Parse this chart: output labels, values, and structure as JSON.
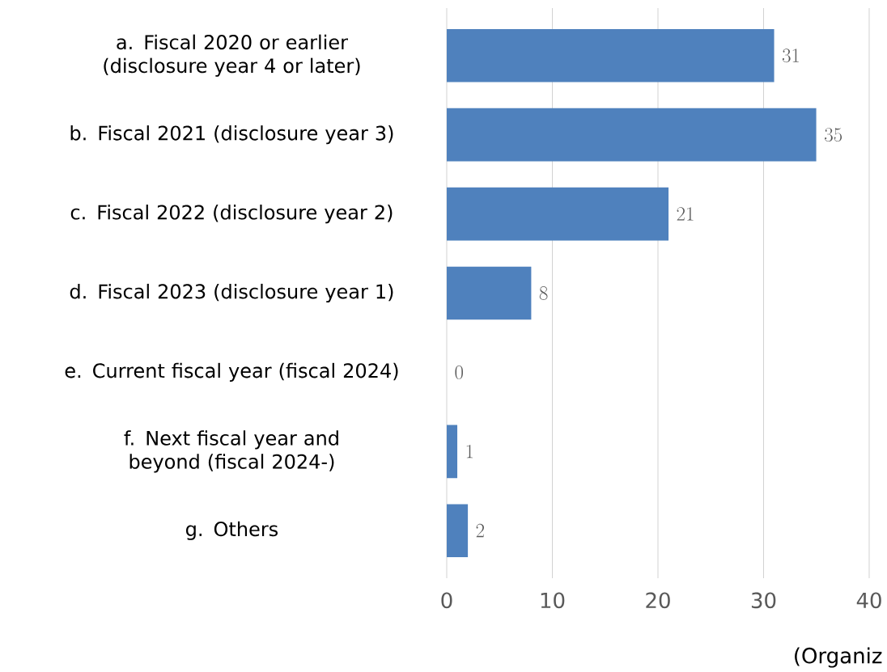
{
  "chart_data": {
    "type": "bar",
    "orientation": "horizontal",
    "categories": [
      "a.  Fiscal 2020 or earlier (disclosure year 4 or later)",
      "b.  Fiscal 2021 (disclosure year 3)",
      "c.  Fiscal 2022 (disclosure year 2)",
      "d.  Fiscal 2023 (disclosure year 1)",
      "e.  Current fiscal year (fiscal 2024)",
      "f.  Next fiscal year and beyond (fiscal 2024-)",
      "g.  Others"
    ],
    "values": [
      31,
      35,
      21,
      8,
      0,
      1,
      2
    ],
    "color": "#4f81bd",
    "xlim": [
      0,
      40
    ],
    "xticks": [
      0,
      10,
      20,
      30,
      40
    ],
    "grid": "x",
    "data_labels": true,
    "xlabel": "(Organiz"
  }
}
